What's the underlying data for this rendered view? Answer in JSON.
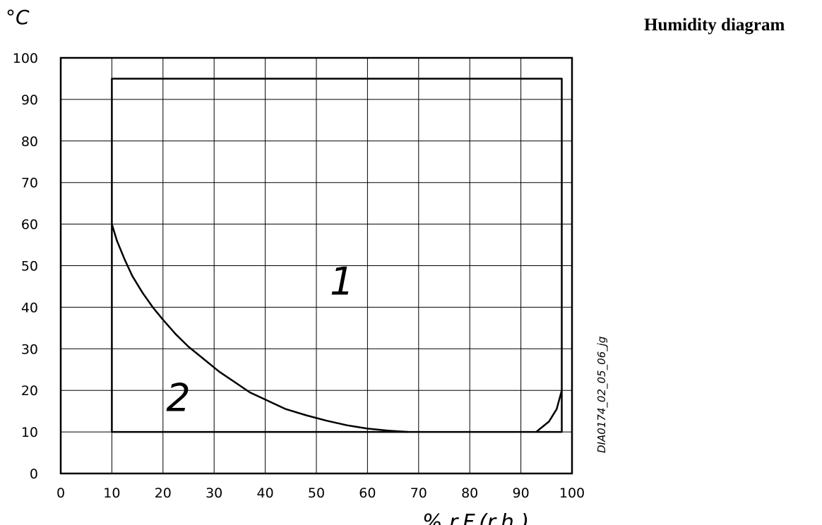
{
  "title": "Humidity diagram",
  "chart_data": {
    "type": "line",
    "ylabel": "°C",
    "xlabel": "% r.F.(r.h.)",
    "xlim": [
      0,
      100
    ],
    "ylim": [
      0,
      100
    ],
    "xticks": [
      "0",
      "10",
      "20",
      "30",
      "40",
      "50",
      "60",
      "70",
      "80",
      "90",
      "100"
    ],
    "yticks": [
      "0",
      "10",
      "20",
      "30",
      "40",
      "50",
      "60",
      "70",
      "80",
      "90",
      "100"
    ],
    "grid": true,
    "region_labels": [
      {
        "text": "1",
        "x": 55,
        "y": 43
      },
      {
        "text": "2",
        "x": 23,
        "y": 15
      }
    ],
    "drawing_id": "DIA0174_02_05_06_jg",
    "series": [
      {
        "points": [
          [
            93,
            10
          ],
          [
            98,
            10
          ],
          [
            98,
            95
          ],
          [
            10,
            95
          ],
          [
            10,
            60
          ],
          [
            11,
            56
          ],
          [
            12.5,
            51.5
          ],
          [
            14,
            47.5
          ],
          [
            16,
            43.5
          ],
          [
            18,
            40
          ],
          [
            20,
            37
          ],
          [
            22.5,
            33.5
          ],
          [
            25,
            30.5
          ],
          [
            28,
            27.5
          ],
          [
            31,
            24.5
          ],
          [
            34,
            22
          ],
          [
            37,
            19.5
          ],
          [
            40.5,
            17.5
          ],
          [
            44,
            15.5
          ],
          [
            48,
            14
          ],
          [
            52,
            12.7
          ],
          [
            56,
            11.6
          ],
          [
            60,
            10.8
          ],
          [
            64,
            10.3
          ],
          [
            68,
            10
          ]
        ]
      },
      {
        "points": [
          [
            10,
            60
          ],
          [
            10,
            10
          ],
          [
            93,
            10
          ],
          [
            95.5,
            12.5
          ],
          [
            97,
            15.5
          ],
          [
            98,
            20
          ]
        ]
      }
    ]
  }
}
